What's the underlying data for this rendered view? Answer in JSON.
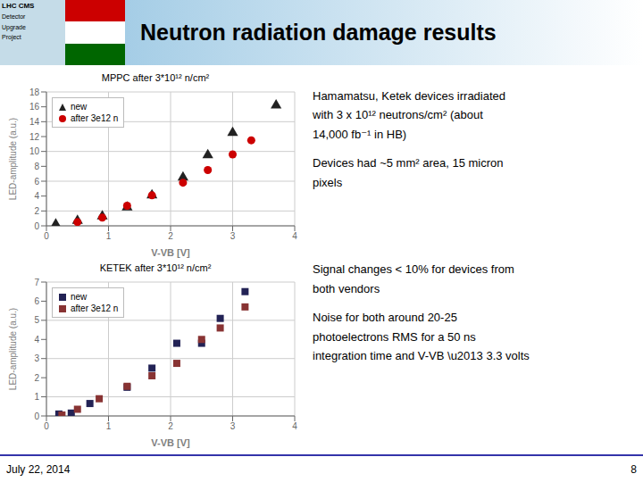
{
  "title": "Neutron radiation damage results",
  "annotations": [
    "LHC CMS",
    "Detector",
    "Upgrade",
    "Project",
    "Hamamatsu, Ketek devices irradiated",
    "with 3 x 10¹²  neutrons/cm²   (about",
    "14,000 fb⁻¹ in HB)",
    "Devices had ~5 mm² area, 15 micron",
    "pixels",
    "Signal changes < 10% for devices from",
    "both vendors",
    "Noise for both around 20-25",
    "photoelectrons RMS for a 50 ns",
    "integration time and V-VB \\u2013 3.3 volts",
    "July 22, 2014",
    "8"
  ],
  "chart_data": [
    {
      "type": "scatter",
      "title": "MPPC after 3*10¹² n/cm²",
      "xlabel": "V-VB [V]",
      "ylabel": "LED-amplitude (a.u.)",
      "xlim": [
        0,
        4
      ],
      "ylim": [
        0,
        18
      ],
      "xticks": [
        0,
        1,
        2,
        3,
        4
      ],
      "yticks": [
        0,
        2,
        4,
        6,
        8,
        10,
        12,
        14,
        16,
        18
      ],
      "grid": true,
      "legend": "upper left",
      "series": [
        {
          "name": "new",
          "color": "#222222",
          "marker": "triangle",
          "x": [
            0.15,
            0.5,
            0.9,
            1.3,
            1.7,
            2.2,
            2.6,
            3.0,
            3.7
          ],
          "values": [
            0.2,
            0.7,
            1.3,
            2.5,
            4.1,
            6.5,
            9.5,
            12.5,
            16.2
          ]
        },
        {
          "name": "after 3e12 n",
          "color": "#cc0000",
          "marker": "circle",
          "x": [
            0.5,
            0.9,
            1.3,
            1.7,
            2.2,
            2.6,
            3.0,
            3.3
          ],
          "values": [
            0.5,
            1.1,
            2.7,
            4.1,
            5.8,
            7.5,
            9.6,
            11.5
          ]
        }
      ]
    },
    {
      "type": "scatter",
      "title": "KETEK after 3*10¹² n/cm²",
      "xlabel": "V-VB [V]",
      "ylabel": "LED-amplitude (a.u.)",
      "xlim": [
        0,
        4
      ],
      "ylim": [
        0,
        7
      ],
      "xticks": [
        0,
        1,
        2,
        3,
        4
      ],
      "yticks": [
        0,
        1,
        2,
        3,
        4,
        5,
        6,
        7
      ],
      "grid": true,
      "legend": "upper left",
      "series": [
        {
          "name": "new",
          "color": "#222255",
          "marker": "square",
          "x": [
            0.2,
            0.4,
            0.7,
            1.3,
            1.7,
            2.1,
            2.5,
            2.8,
            3.2
          ],
          "values": [
            0.1,
            0.15,
            0.65,
            1.5,
            2.5,
            3.8,
            3.8,
            5.1,
            6.5
          ]
        },
        {
          "name": "after 3e12 n",
          "color": "#883333",
          "marker": "square",
          "x": [
            0.25,
            0.5,
            0.85,
            1.3,
            1.7,
            2.1,
            2.5,
            2.8,
            3.2
          ],
          "values": [
            0.05,
            0.35,
            0.9,
            1.55,
            2.1,
            2.75,
            4.0,
            4.6,
            5.7
          ]
        }
      ]
    }
  ]
}
